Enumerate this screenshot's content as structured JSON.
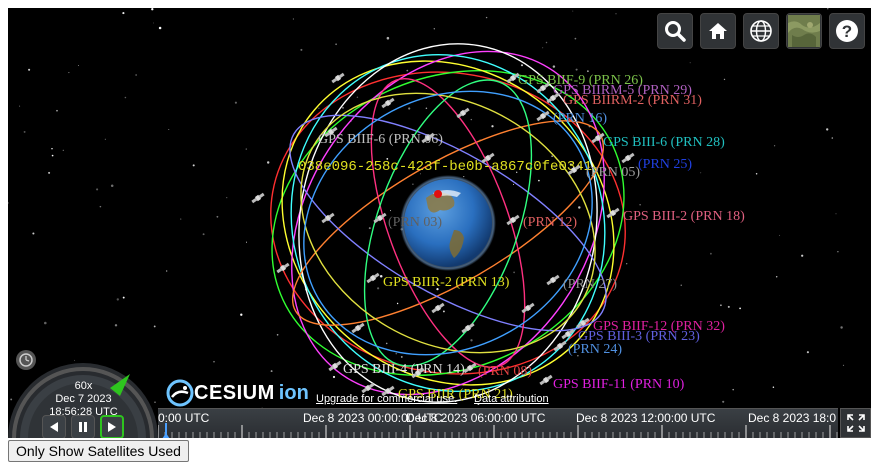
{
  "toolbar": {
    "buttons": [
      {
        "name": "search-button",
        "icon": "search-icon"
      },
      {
        "name": "home-button",
        "icon": "home-icon"
      },
      {
        "name": "scene-mode-button",
        "icon": "globe-icon"
      },
      {
        "name": "base-layer-picker",
        "icon": "imagery-thumbnail-icon"
      },
      {
        "name": "help-button",
        "icon": "question-icon"
      }
    ]
  },
  "globe": {
    "center_label": "038e096-258c-423f-be0b-a867c0fe0341"
  },
  "satellites": [
    {
      "label": "GPS BIIF-9 (PRN 26)",
      "color": "#7cc24a"
    },
    {
      "label": "GPS BIIRM-5 (PRN 29)",
      "color": "#b060c0"
    },
    {
      "label": "GPS BIIRM-2 (PRN 31)",
      "color": "#e06060"
    },
    {
      "label": "GPS BIIF-6 (PRN 06)",
      "color": "#c0c0c0"
    },
    {
      "label": "(PRN 16)",
      "color": "#5090e0"
    },
    {
      "label": "GPS BIII-6 (PRN 28)",
      "color": "#20c0c0"
    },
    {
      "label": "(PRN 25)",
      "color": "#2040e0"
    },
    {
      "label": "(PRN 05)",
      "color": "#a0a0a0"
    },
    {
      "label": "GPS BIII-2 (PRN 18)",
      "color": "#e06080"
    },
    {
      "label": "(PRN 03)",
      "color": "#606060"
    },
    {
      "label": "(PRN 12)",
      "color": "#e06060"
    },
    {
      "label": "GPS BIIR-2 (PRN 13)",
      "color": "#e0e020"
    },
    {
      "label": "(PRN 27)",
      "color": "#909090"
    },
    {
      "label": "GPS BIIF-12 (PRN 32)",
      "color": "#e020a0"
    },
    {
      "label": "GPS BIII-3 (PRN 23)",
      "color": "#6060e0"
    },
    {
      "label": "(PRN 24)",
      "color": "#5090e0"
    },
    {
      "label": "GPS BIII-4 (PRN 14)",
      "color": "#e0e0e0"
    },
    {
      "label": "(PRN 08)",
      "color": "#e04040"
    },
    {
      "label": "GPS BIIF-11 (PRN 10)",
      "color": "#e020e0"
    },
    {
      "label": "GPS BIIR (PRN 21)",
      "color": "#e0e020"
    }
  ],
  "clock": {
    "multiplier": "60x",
    "date": "Dec 7 2023",
    "time": "18:56:28 UTC"
  },
  "timeline": {
    "labels": [
      "0:00 UTC",
      "Dec 8 2023 00:00:00 UTC",
      "Dec 8 2023 06:00:00 UTC",
      "Dec 8 2023 12:00:00 UTC",
      "Dec 8 2023 18:0"
    ]
  },
  "credits": {
    "logo_text": "CESIUM",
    "logo_text2": "ion",
    "upgrade": "Upgrade for commercial use.",
    "attribution": "Data attribution"
  },
  "controls": {
    "toggle_button": "Only Show Satellites Used"
  },
  "colors": {
    "background": "#000000",
    "toolbar_button": "#303336",
    "ocean": "#2a6fbf",
    "land": "#8a7b4a"
  }
}
